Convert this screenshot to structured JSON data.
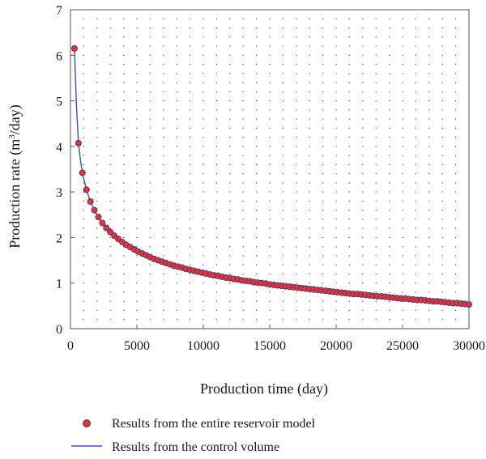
{
  "chart_data": {
    "type": "scatter",
    "xlabel": "Production time (day)",
    "ylabel_main": "Production rate (m",
    "ylabel_sup": "3",
    "ylabel_tail": "/day)",
    "xlim": [
      0,
      30000
    ],
    "ylim": [
      0,
      7
    ],
    "x_ticks": [
      "0",
      "5000",
      "10000",
      "15000",
      "20000",
      "25000",
      "30000"
    ],
    "y_ticks": [
      "0",
      "1",
      "2",
      "3",
      "4",
      "5",
      "6",
      "7"
    ],
    "grid": "dotted",
    "legend_position": "bottom",
    "series": [
      {
        "name": "Results from the entire reservoir model",
        "style": "markers",
        "color": "#e8312a",
        "edge_color": "#3a3f8f",
        "x": [
          300,
          600,
          900,
          1200,
          1500,
          1800,
          2100,
          2400,
          2700,
          3000,
          3300,
          3600,
          3900,
          4200,
          4500,
          4800,
          5100,
          5400,
          5700,
          6000,
          6300,
          6600,
          6900,
          7200,
          7500,
          7800,
          8100,
          8400,
          8700,
          9000,
          9300,
          9600,
          9900,
          10200,
          10500,
          10800,
          11100,
          11400,
          11700,
          12000,
          12300,
          12600,
          12900,
          13200,
          13500,
          13800,
          14100,
          14400,
          14700,
          15000,
          15300,
          15600,
          15900,
          16200,
          16500,
          16800,
          17100,
          17400,
          17700,
          18000,
          18300,
          18600,
          18900,
          19200,
          19500,
          19800,
          20100,
          20400,
          20700,
          21000,
          21300,
          21600,
          21900,
          22200,
          22500,
          22800,
          23100,
          23400,
          23700,
          24000,
          24300,
          24600,
          24900,
          25200,
          25500,
          25800,
          26100,
          26400,
          26700,
          27000,
          27300,
          27600,
          27900,
          28200,
          28500,
          28800,
          29100,
          29400,
          29700,
          30000
        ],
        "y": [
          6.15,
          4.07,
          3.42,
          3.05,
          2.79,
          2.6,
          2.45,
          2.32,
          2.21,
          2.12,
          2.04,
          1.97,
          1.9,
          1.84,
          1.79,
          1.74,
          1.69,
          1.65,
          1.61,
          1.57,
          1.53,
          1.5,
          1.47,
          1.44,
          1.41,
          1.38,
          1.36,
          1.34,
          1.31,
          1.29,
          1.27,
          1.25,
          1.23,
          1.21,
          1.19,
          1.17,
          1.16,
          1.14,
          1.12,
          1.11,
          1.09,
          1.08,
          1.06,
          1.05,
          1.04,
          1.02,
          1.01,
          1.0,
          0.99,
          0.97,
          0.96,
          0.95,
          0.94,
          0.93,
          0.92,
          0.91,
          0.9,
          0.89,
          0.88,
          0.87,
          0.86,
          0.85,
          0.84,
          0.83,
          0.82,
          0.81,
          0.8,
          0.79,
          0.78,
          0.77,
          0.76,
          0.76,
          0.75,
          0.74,
          0.73,
          0.72,
          0.71,
          0.71,
          0.7,
          0.69,
          0.68,
          0.67,
          0.66,
          0.66,
          0.65,
          0.64,
          0.63,
          0.63,
          0.62,
          0.61,
          0.6,
          0.6,
          0.59,
          0.58,
          0.57,
          0.56,
          0.56,
          0.55,
          0.54,
          0.53
        ]
      },
      {
        "name": "Results from the control volume",
        "style": "line",
        "color": "#3d4fbf",
        "x": [
          300,
          450,
          600,
          750,
          900,
          1200,
          1500,
          1800,
          2100,
          2400,
          2700,
          3000,
          3600,
          4200,
          4800,
          5400,
          6000,
          6600,
          7200,
          7800,
          8400,
          9000,
          9600,
          10200,
          10800,
          11400,
          12000,
          12600,
          13200,
          13800,
          14400,
          15000,
          15600,
          16200,
          16800,
          17400,
          18000,
          18600,
          19200,
          19800,
          20400,
          21000,
          21600,
          22200,
          22800,
          23400,
          24000,
          24600,
          25200,
          25800,
          26400,
          27000,
          27600,
          28200,
          28800,
          29400,
          30000
        ],
        "y": [
          6.15,
          4.9,
          4.07,
          3.7,
          3.42,
          3.05,
          2.79,
          2.6,
          2.45,
          2.32,
          2.21,
          2.12,
          1.97,
          1.84,
          1.74,
          1.65,
          1.57,
          1.5,
          1.44,
          1.38,
          1.34,
          1.29,
          1.25,
          1.21,
          1.17,
          1.14,
          1.11,
          1.08,
          1.05,
          1.02,
          1.0,
          0.97,
          0.95,
          0.93,
          0.91,
          0.89,
          0.87,
          0.85,
          0.83,
          0.81,
          0.79,
          0.77,
          0.76,
          0.74,
          0.72,
          0.71,
          0.69,
          0.67,
          0.66,
          0.64,
          0.63,
          0.61,
          0.6,
          0.58,
          0.56,
          0.55,
          0.53
        ]
      }
    ]
  }
}
